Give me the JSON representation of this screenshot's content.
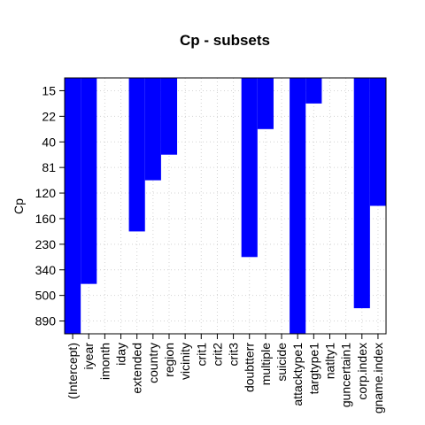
{
  "chart_data": {
    "type": "heatmap",
    "title": "Cp - subsets",
    "xlabel": "",
    "ylabel": "Cp",
    "fill_color": "#0000FF",
    "grid": true,
    "y_ticks": [
      "15",
      "22",
      "40",
      "81",
      "120",
      "160",
      "230",
      "340",
      "500",
      "890"
    ],
    "variables": [
      {
        "name": "(Intercept)",
        "depth": 1.0
      },
      {
        "name": "iyear",
        "depth": 0.805
      },
      {
        "name": "imonth",
        "depth": 0
      },
      {
        "name": "iday",
        "depth": 0
      },
      {
        "name": "extended",
        "depth": 0.6
      },
      {
        "name": "country",
        "depth": 0.4
      },
      {
        "name": "region",
        "depth": 0.3
      },
      {
        "name": "vicinity",
        "depth": 0
      },
      {
        "name": "crit1",
        "depth": 0
      },
      {
        "name": "crit2",
        "depth": 0
      },
      {
        "name": "crit3",
        "depth": 0
      },
      {
        "name": "doubtterr",
        "depth": 0.7
      },
      {
        "name": "multiple",
        "depth": 0.2
      },
      {
        "name": "suicide",
        "depth": 0
      },
      {
        "name": "attacktype1",
        "depth": 1.0
      },
      {
        "name": "targtype1",
        "depth": 0.1
      },
      {
        "name": "natlty1",
        "depth": 0
      },
      {
        "name": "guncertain1",
        "depth": 0
      },
      {
        "name": "corp.index",
        "depth": 0.9
      },
      {
        "name": "gname.index",
        "depth": 0.5
      }
    ]
  }
}
